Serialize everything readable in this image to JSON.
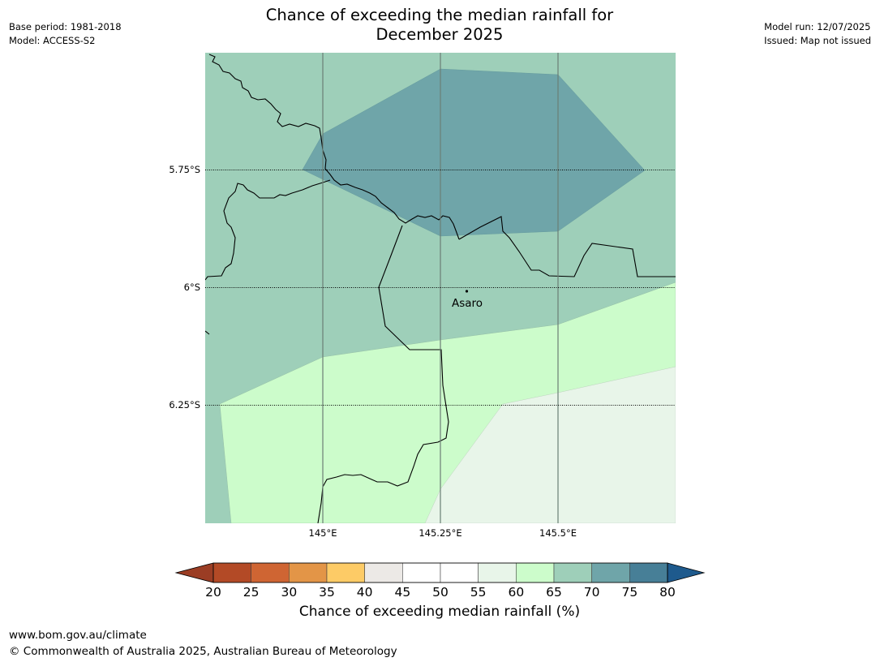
{
  "header": {
    "title_line1": "Chance of exceeding the median rainfall for",
    "title_line2": "December 2025",
    "base_period": "Base period: 1981-2018",
    "model": "Model: ACCESS-S2",
    "model_run": "Model run: 12/07/2025",
    "issued": "Issued: Map not issued"
  },
  "map": {
    "lat_labels": [
      "5.75°S",
      "6°S",
      "6.25°S"
    ],
    "lon_labels": [
      "145°E",
      "145.25°E",
      "145.5°E"
    ],
    "place": {
      "name": "Asaro",
      "lat": -6.01,
      "lon": 145.3
    },
    "extent": {
      "lon_min": 144.75,
      "lon_max": 145.75,
      "lat_max": -5.5,
      "lat_min": -6.5
    },
    "region_colors": {
      "65-70": "#9ecfb9",
      "70-75": "#6fa5a9",
      "60-65": "#ccfccb",
      "55-60": "#e8f5e9"
    }
  },
  "colorbar": {
    "title": "Chance of exceeding median rainfall (%)",
    "ticks": [
      "20",
      "25",
      "30",
      "35",
      "40",
      "45",
      "50",
      "55",
      "60",
      "65",
      "70",
      "75",
      "80"
    ],
    "under_color": "#9b3d24",
    "over_color": "#1e5a8d",
    "colors": [
      "#b34a26",
      "#cf6533",
      "#e39547",
      "#fdcb66",
      "#ece9e6",
      "#ffffff",
      "#ffffff",
      "#e8f5e9",
      "#ccfccb",
      "#9ecfb9",
      "#6fa5a9",
      "#477f97"
    ]
  },
  "footer": {
    "url": "www.bom.gov.au/climate",
    "copyright": "© Commonwealth of Australia 2025, Australian Bureau of Meteorology"
  }
}
